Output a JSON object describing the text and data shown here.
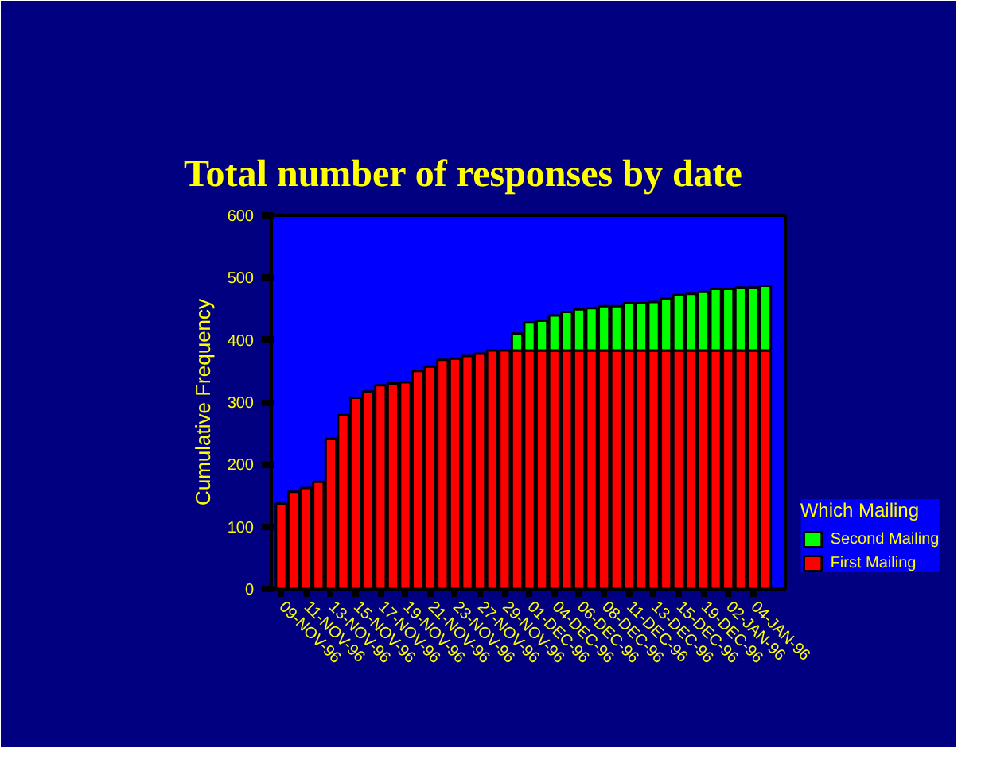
{
  "chart_data": {
    "type": "bar",
    "title": "Total number of responses by date",
    "ylabel": "Cumulative Frequency",
    "legend_title": "Which Mailing",
    "categories": [
      "09-NOV-96",
      null,
      "11-NOV-96",
      null,
      "13-NOV-96",
      null,
      "15-NOV-96",
      null,
      "17-NOV-96",
      null,
      "19-NOV-96",
      null,
      "21-NOV-96",
      null,
      "23-NOV-96",
      null,
      "27-NOV-96",
      null,
      "29-NOV-96",
      null,
      "01-DEC-96",
      null,
      "04-DEC-96",
      null,
      "06-DEC-96",
      null,
      "08-DEC-96",
      null,
      "11-DEC-96",
      null,
      "13-DEC-96",
      null,
      "15-DEC-96",
      null,
      "19-DEC-96",
      null,
      "02-JAN-96",
      null,
      "04-JAN-96",
      null
    ],
    "series": [
      {
        "name": "First Mailing",
        "color": "#ff0000",
        "values": [
          137,
          156,
          162,
          172,
          241,
          279,
          307,
          317,
          327,
          330,
          332,
          350,
          357,
          368,
          370,
          374,
          378,
          383,
          383,
          383,
          383,
          383,
          383,
          383,
          383,
          383,
          383,
          383,
          383,
          383,
          383,
          383,
          383,
          383,
          383,
          383,
          383,
          383,
          383,
          383
        ]
      },
      {
        "name": "Second Mailing",
        "color": "#00ff00",
        "values": [
          null,
          null,
          null,
          null,
          null,
          null,
          null,
          null,
          null,
          null,
          null,
          null,
          null,
          null,
          null,
          null,
          null,
          null,
          null,
          27,
          45,
          48,
          56,
          62,
          66,
          68,
          71,
          71,
          76,
          76,
          78,
          83,
          89,
          91,
          94,
          99,
          99,
          101,
          101,
          104
        ]
      }
    ],
    "stacked": true,
    "ylim": [
      0,
      600
    ],
    "yticks": [
      0,
      100,
      200,
      300,
      400,
      500,
      600
    ],
    "legend": "right"
  }
}
